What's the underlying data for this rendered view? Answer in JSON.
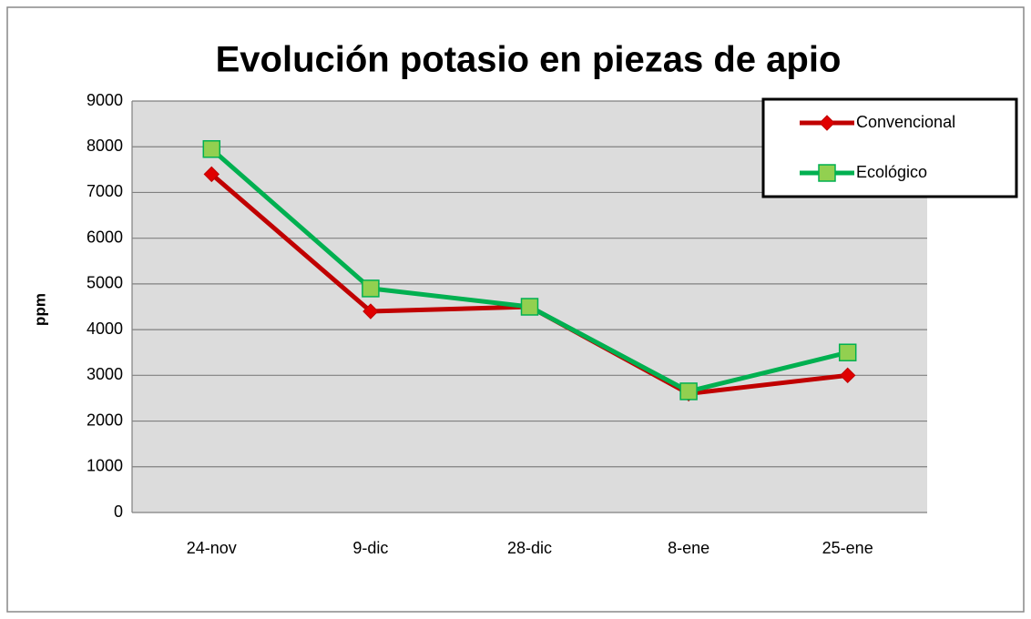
{
  "chart_data": {
    "type": "line",
    "title": "Evolución potasio en piezas de apio",
    "ylabel": "ppm",
    "categories": [
      "24-nov",
      "9-dic",
      "28-dic",
      "8-ene",
      "25-ene"
    ],
    "series": [
      {
        "name": "Convencional",
        "color": "#c00000",
        "marker": "diamond",
        "values": [
          7400,
          4400,
          4500,
          2600,
          3000
        ]
      },
      {
        "name": "Ecológico",
        "color": "#00b050",
        "marker": "square",
        "values": [
          7950,
          4900,
          4500,
          2650,
          3500
        ]
      }
    ],
    "ylim": [
      0,
      9000
    ],
    "yticks": [
      0,
      1000,
      2000,
      3000,
      4000,
      5000,
      6000,
      7000,
      8000,
      9000
    ],
    "grid": true,
    "legend": "upper right"
  }
}
